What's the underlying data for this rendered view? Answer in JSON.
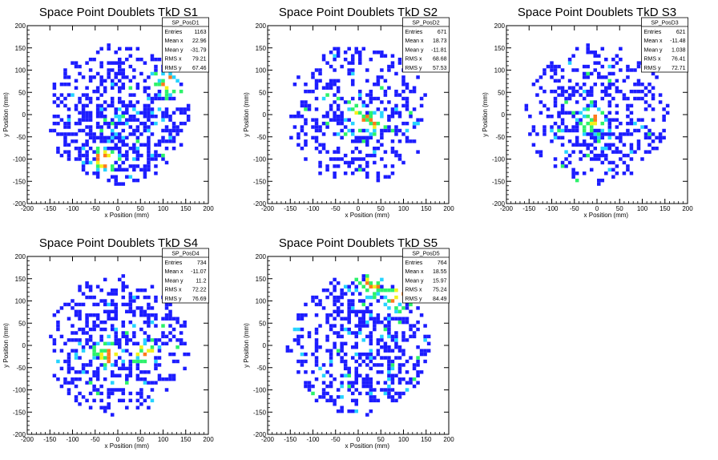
{
  "colors": {
    "level1": "#1c1cff",
    "level2": "#26d3ff",
    "level3": "#2cf26a",
    "level4": "#f2f21a",
    "level5": "#ff7a1a",
    "level6": "#e81818",
    "frame": "#000000",
    "background": "#ffffff"
  },
  "chart_data": [
    {
      "type": "heatmap",
      "title": "Space Point Doublets TkD S1",
      "xlabel": "x Position (mm)",
      "ylabel": "y Position (mm)",
      "xlim": [
        -200,
        200
      ],
      "ylim": [
        -200,
        200
      ],
      "xticks": [
        -200,
        -150,
        -100,
        -50,
        0,
        50,
        100,
        150,
        200
      ],
      "yticks": [
        -200,
        -150,
        -100,
        -50,
        0,
        50,
        100,
        150,
        200
      ],
      "stats": {
        "name": "SP_PosD1",
        "rows": [
          {
            "label": "Entries",
            "value": "1163"
          },
          {
            "label": "Mean x",
            "value": "22.96"
          },
          {
            "label": "Mean y",
            "value": "-31.79"
          },
          {
            "label": "RMS x",
            "value": "79.21"
          },
          {
            "label": "RMS y",
            "value": "67.46"
          }
        ]
      },
      "description_stats": {
        "entries": 1163,
        "mean_x": 22.96,
        "mean_y": -31.79,
        "rms_x": 79.21,
        "rms_y": 67.46,
        "hot_spots": [
          [
            -30,
            -100
          ],
          [
            110,
            70
          ]
        ]
      }
    },
    {
      "type": "heatmap",
      "title": "Space Point Doublets TkD S2",
      "xlabel": "x Position (mm)",
      "ylabel": "y Position (mm)",
      "xlim": [
        -200,
        200
      ],
      "ylim": [
        -200,
        200
      ],
      "xticks": [
        -200,
        -150,
        -100,
        -50,
        0,
        50,
        100,
        150,
        200
      ],
      "yticks": [
        -200,
        -150,
        -100,
        -50,
        0,
        50,
        100,
        150,
        200
      ],
      "stats": {
        "name": "SP_PosD2",
        "rows": [
          {
            "label": "Entries",
            "value": "671"
          },
          {
            "label": "Mean x",
            "value": "18.73"
          },
          {
            "label": "Mean y",
            "value": "-11.81"
          },
          {
            "label": "RMS x",
            "value": "68.68"
          },
          {
            "label": "RMS y",
            "value": "57.53"
          }
        ]
      },
      "description_stats": {
        "entries": 671,
        "mean_x": 18.73,
        "mean_y": -11.81,
        "rms_x": 68.68,
        "rms_y": 57.53,
        "hot_spots": [
          [
            0,
            0
          ],
          [
            30,
            -15
          ]
        ]
      }
    },
    {
      "type": "heatmap",
      "title": "Space Point Doublets TkD S3",
      "xlabel": "x Position (mm)",
      "ylabel": "y Position (mm)",
      "xlim": [
        -200,
        200
      ],
      "ylim": [
        -200,
        200
      ],
      "xticks": [
        -200,
        -150,
        -100,
        -50,
        0,
        50,
        100,
        150,
        200
      ],
      "yticks": [
        -200,
        -150,
        -100,
        -50,
        0,
        50,
        100,
        150,
        200
      ],
      "stats": {
        "name": "SP_PosD3",
        "rows": [
          {
            "label": "Entries",
            "value": "621"
          },
          {
            "label": "Mean x",
            "value": "-11.48"
          },
          {
            "label": "Mean y",
            "value": "1.038"
          },
          {
            "label": "RMS x",
            "value": "76.41"
          },
          {
            "label": "RMS y",
            "value": "72.71"
          }
        ]
      },
      "description_stats": {
        "entries": 621,
        "mean_x": -11.48,
        "mean_y": 1.038,
        "rms_x": 76.41,
        "rms_y": 72.71,
        "hot_spots": [
          [
            -10,
            -15
          ]
        ]
      }
    },
    {
      "type": "heatmap",
      "title": "Space Point Doublets TkD S4",
      "xlabel": "x Position (mm)",
      "ylabel": "y Position (mm)",
      "xlim": [
        -200,
        200
      ],
      "ylim": [
        -200,
        200
      ],
      "xticks": [
        -200,
        -150,
        -100,
        -50,
        0,
        50,
        100,
        150,
        200
      ],
      "yticks": [
        -200,
        -150,
        -100,
        -50,
        0,
        50,
        100,
        150,
        200
      ],
      "stats": {
        "name": "SP_PosD4",
        "rows": [
          {
            "label": "Entries",
            "value": "734"
          },
          {
            "label": "Mean x",
            "value": "-11.07"
          },
          {
            "label": "Mean y",
            "value": "11.2"
          },
          {
            "label": "RMS x",
            "value": "72.22"
          },
          {
            "label": "RMS y",
            "value": "76.69"
          }
        ]
      },
      "description_stats": {
        "entries": 734,
        "mean_x": -11.07,
        "mean_y": 11.2,
        "rms_x": 72.22,
        "rms_y": 76.69,
        "hot_spots": [
          [
            -20,
            -20
          ],
          [
            60,
            -15
          ]
        ]
      }
    },
    {
      "type": "heatmap",
      "title": "Space Point Doublets TkD S5",
      "xlabel": "x Position (mm)",
      "ylabel": "y Position (mm)",
      "xlim": [
        -200,
        200
      ],
      "ylim": [
        -200,
        200
      ],
      "xticks": [
        -200,
        -150,
        -100,
        -50,
        0,
        50,
        100,
        150,
        200
      ],
      "yticks": [
        -200,
        -150,
        -100,
        -50,
        0,
        50,
        100,
        150,
        200
      ],
      "stats": {
        "name": "SP_PosD5",
        "rows": [
          {
            "label": "Entries",
            "value": "764"
          },
          {
            "label": "Mean x",
            "value": "18.55"
          },
          {
            "label": "Mean y",
            "value": "15.97"
          },
          {
            "label": "RMS x",
            "value": "75.24"
          },
          {
            "label": "RMS y",
            "value": "84.49"
          }
        ]
      },
      "description_stats": {
        "entries": 764,
        "mean_x": 18.55,
        "mean_y": 15.97,
        "rms_x": 75.24,
        "rms_y": 84.49,
        "hot_spots": [
          [
            90,
            110
          ],
          [
            30,
            140
          ]
        ]
      }
    }
  ]
}
